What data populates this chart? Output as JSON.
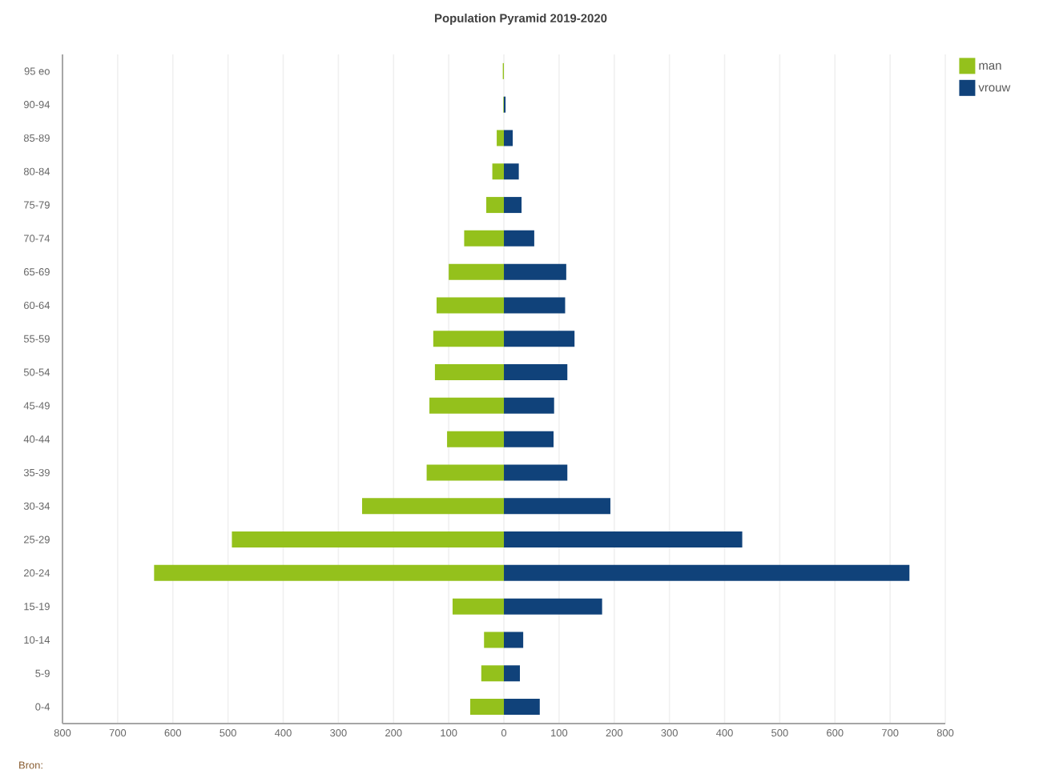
{
  "chart_data": {
    "type": "bar",
    "orientation": "horizontal",
    "title": "Population Pyramid 2019-2020",
    "categories": [
      "95 eo",
      "90-94",
      "85-89",
      "80-84",
      "75-79",
      "70-74",
      "65-69",
      "60-64",
      "55-59",
      "50-54",
      "45-49",
      "40-44",
      "35-39",
      "30-34",
      "25-29",
      "20-24",
      "15-19",
      "10-14",
      "5-9",
      "0-4"
    ],
    "series": [
      {
        "name": "man",
        "color": "#94c11c",
        "values": [
          -2,
          -1,
          -13,
          -21,
          -32,
          -72,
          -100,
          -122,
          -128,
          -125,
          -135,
          -103,
          -140,
          -257,
          -493,
          -634,
          -93,
          -36,
          -41,
          -61
        ]
      },
      {
        "name": "vrouw",
        "color": "#10427a",
        "values": [
          0,
          3,
          16,
          27,
          32,
          55,
          113,
          111,
          128,
          115,
          91,
          90,
          115,
          193,
          432,
          735,
          178,
          35,
          29,
          65
        ]
      }
    ],
    "xlim": [
      -800,
      800
    ],
    "xticks": [
      {
        "value": -800,
        "label": "800"
      },
      {
        "value": -700,
        "label": "700"
      },
      {
        "value": -600,
        "label": "600"
      },
      {
        "value": -500,
        "label": "500"
      },
      {
        "value": -400,
        "label": "400"
      },
      {
        "value": -300,
        "label": "300"
      },
      {
        "value": -200,
        "label": "200"
      },
      {
        "value": -100,
        "label": "100"
      },
      0,
      100,
      200,
      300,
      400,
      500,
      600,
      700,
      800
    ],
    "stacked": true,
    "grid": "x",
    "legend": "top right",
    "annotations": [
      "Bron:"
    ]
  }
}
